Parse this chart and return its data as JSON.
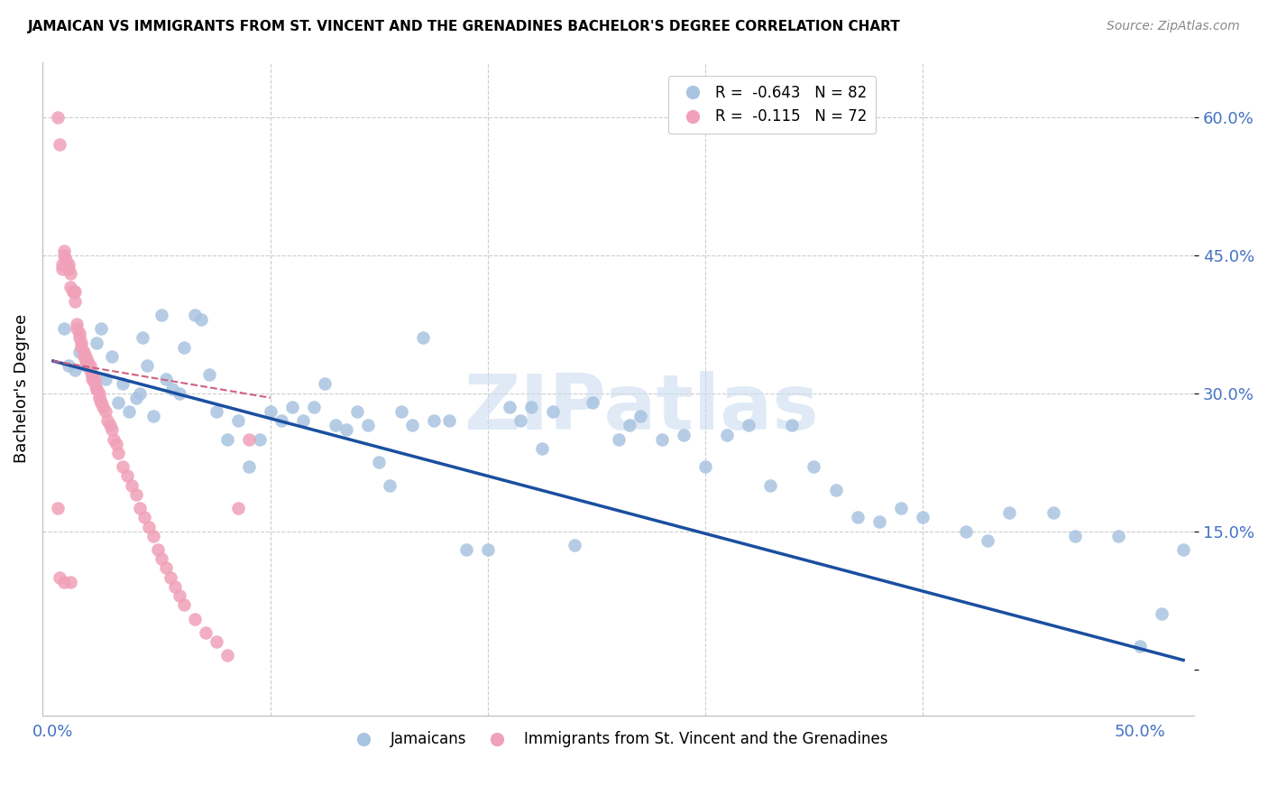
{
  "title": "JAMAICAN VS IMMIGRANTS FROM ST. VINCENT AND THE GRENADINES BACHELOR'S DEGREE CORRELATION CHART",
  "source": "Source: ZipAtlas.com",
  "ylabel": "Bachelor's Degree",
  "watermark": "ZIPatlas",
  "legend_upper": {
    "blue_label": "R =  -0.643   N = 82",
    "pink_label": "R =  -0.115   N = 72"
  },
  "legend_lower": {
    "jamaicans": "Jamaicans",
    "immigrants": "Immigrants from St. Vincent and the Grenadines"
  },
  "ytick_vals": [
    0.0,
    0.15,
    0.3,
    0.45,
    0.6
  ],
  "ytick_labels": [
    "",
    "15.0%",
    "30.0%",
    "45.0%",
    "60.0%"
  ],
  "xtick_vals": [
    0.0,
    0.1,
    0.2,
    0.3,
    0.4,
    0.5
  ],
  "xtick_labels": [
    "0.0%",
    "",
    "",
    "",
    "",
    "50.0%"
  ],
  "xlim": [
    -0.005,
    0.525
  ],
  "ylim": [
    -0.05,
    0.66
  ],
  "blue_color": "#a8c4e0",
  "pink_color": "#f0a0b8",
  "blue_line_color": "#1a4fa0",
  "pink_line_color": "#d06080",
  "grid_color": "#cccccc",
  "tick_color": "#4472c4",
  "blue_line_x0": 0.0,
  "blue_line_y0": 0.335,
  "blue_line_x1": 0.52,
  "blue_line_y1": 0.01,
  "pink_line_x0": 0.0,
  "pink_line_y0": 0.335,
  "pink_line_x1": 0.1,
  "pink_line_y1": 0.295,
  "blue_x": [
    0.005,
    0.007,
    0.01,
    0.012,
    0.015,
    0.018,
    0.02,
    0.022,
    0.024,
    0.027,
    0.03,
    0.032,
    0.035,
    0.038,
    0.04,
    0.041,
    0.043,
    0.046,
    0.05,
    0.052,
    0.055,
    0.058,
    0.06,
    0.065,
    0.068,
    0.072,
    0.075,
    0.08,
    0.085,
    0.09,
    0.095,
    0.1,
    0.105,
    0.11,
    0.115,
    0.12,
    0.125,
    0.13,
    0.135,
    0.14,
    0.145,
    0.15,
    0.155,
    0.16,
    0.165,
    0.17,
    0.175,
    0.182,
    0.19,
    0.2,
    0.21,
    0.215,
    0.22,
    0.225,
    0.23,
    0.24,
    0.248,
    0.26,
    0.265,
    0.27,
    0.28,
    0.29,
    0.3,
    0.31,
    0.32,
    0.33,
    0.34,
    0.35,
    0.36,
    0.37,
    0.38,
    0.39,
    0.4,
    0.42,
    0.43,
    0.44,
    0.46,
    0.47,
    0.49,
    0.5,
    0.51,
    0.52
  ],
  "blue_y": [
    0.37,
    0.33,
    0.325,
    0.345,
    0.33,
    0.32,
    0.355,
    0.37,
    0.315,
    0.34,
    0.29,
    0.31,
    0.28,
    0.295,
    0.3,
    0.36,
    0.33,
    0.275,
    0.385,
    0.315,
    0.305,
    0.3,
    0.35,
    0.385,
    0.38,
    0.32,
    0.28,
    0.25,
    0.27,
    0.22,
    0.25,
    0.28,
    0.27,
    0.285,
    0.27,
    0.285,
    0.31,
    0.265,
    0.26,
    0.28,
    0.265,
    0.225,
    0.2,
    0.28,
    0.265,
    0.36,
    0.27,
    0.27,
    0.13,
    0.13,
    0.285,
    0.27,
    0.285,
    0.24,
    0.28,
    0.135,
    0.29,
    0.25,
    0.265,
    0.275,
    0.25,
    0.255,
    0.22,
    0.255,
    0.265,
    0.2,
    0.265,
    0.22,
    0.195,
    0.165,
    0.16,
    0.175,
    0.165,
    0.15,
    0.14,
    0.17,
    0.17,
    0.145,
    0.145,
    0.025,
    0.06,
    0.13
  ],
  "pink_x": [
    0.002,
    0.003,
    0.004,
    0.004,
    0.005,
    0.005,
    0.006,
    0.007,
    0.007,
    0.008,
    0.008,
    0.009,
    0.009,
    0.01,
    0.01,
    0.011,
    0.011,
    0.012,
    0.012,
    0.013,
    0.013,
    0.014,
    0.014,
    0.015,
    0.015,
    0.016,
    0.016,
    0.017,
    0.017,
    0.018,
    0.018,
    0.019,
    0.019,
    0.02,
    0.02,
    0.021,
    0.021,
    0.022,
    0.022,
    0.023,
    0.024,
    0.025,
    0.026,
    0.027,
    0.028,
    0.029,
    0.03,
    0.032,
    0.034,
    0.036,
    0.038,
    0.04,
    0.042,
    0.044,
    0.046,
    0.048,
    0.05,
    0.052,
    0.054,
    0.056,
    0.058,
    0.06,
    0.065,
    0.07,
    0.075,
    0.08,
    0.085,
    0.09,
    0.002,
    0.003,
    0.005,
    0.008
  ],
  "pink_y": [
    0.6,
    0.57,
    0.435,
    0.44,
    0.45,
    0.455,
    0.445,
    0.44,
    0.435,
    0.43,
    0.415,
    0.41,
    0.41,
    0.4,
    0.41,
    0.375,
    0.37,
    0.365,
    0.36,
    0.355,
    0.35,
    0.345,
    0.34,
    0.34,
    0.335,
    0.335,
    0.33,
    0.325,
    0.33,
    0.32,
    0.315,
    0.31,
    0.315,
    0.305,
    0.305,
    0.3,
    0.295,
    0.29,
    0.29,
    0.285,
    0.28,
    0.27,
    0.265,
    0.26,
    0.25,
    0.245,
    0.235,
    0.22,
    0.21,
    0.2,
    0.19,
    0.175,
    0.165,
    0.155,
    0.145,
    0.13,
    0.12,
    0.11,
    0.1,
    0.09,
    0.08,
    0.07,
    0.055,
    0.04,
    0.03,
    0.015,
    0.175,
    0.25,
    0.175,
    0.1,
    0.095,
    0.095
  ]
}
